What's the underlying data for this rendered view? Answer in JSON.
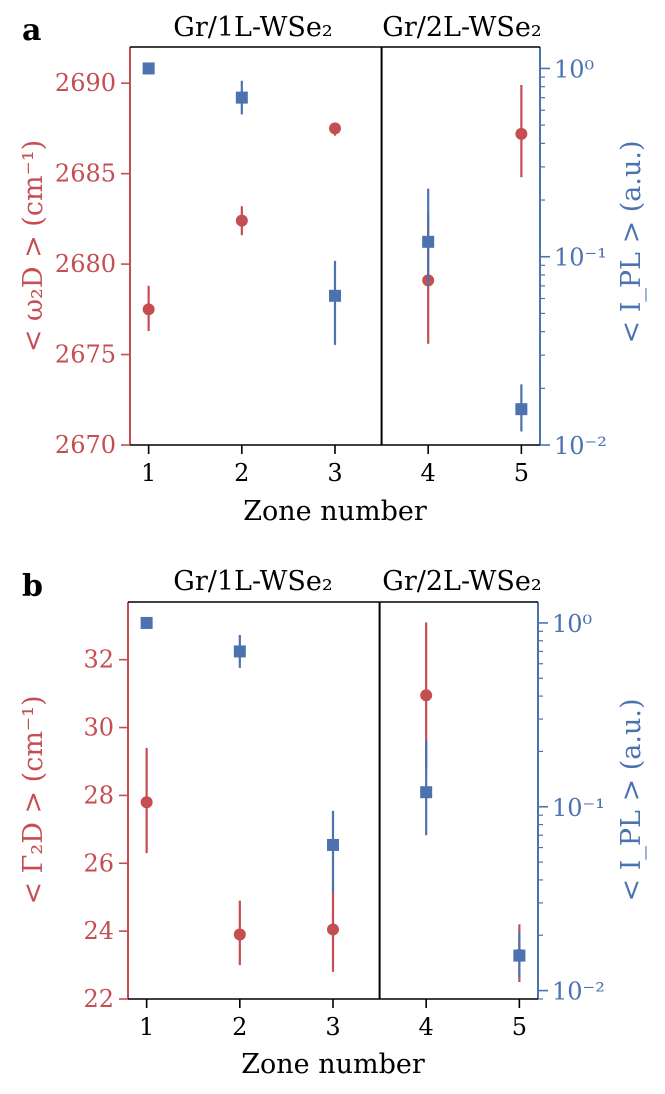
{
  "colors": {
    "red": "#c44e52",
    "blue": "#4c72b0",
    "axis": "#000000"
  },
  "chart_data": [
    {
      "panel_label": "a",
      "type": "scatter",
      "title_left": "Gr/1L-WSe₂",
      "title_right": "Gr/2L-WSe₂",
      "xlabel": "Zone number",
      "ylabel_left": "< ω₂D > (cm⁻¹)",
      "ylabel_right": "< I_PL > (a.u.)",
      "x_ticks": [
        1,
        2,
        3,
        4,
        5
      ],
      "x_tick_labels": [
        "1",
        "2",
        "3",
        "4",
        "5"
      ],
      "xlim": [
        0.8,
        5.2
      ],
      "divider_x": 3.5,
      "left_axis": {
        "ylim": [
          2670,
          2692
        ],
        "ticks": [
          2670,
          2675,
          2680,
          2685,
          2690
        ],
        "tick_labels": [
          "2670",
          "2675",
          "2680",
          "2685",
          "2690"
        ]
      },
      "right_axis": {
        "scale": "log",
        "ylim": [
          0.01,
          1.3
        ],
        "major_ticks": [
          0.01,
          0.1,
          1
        ],
        "tick_labels": [
          "10⁻²",
          "10⁻¹",
          "10⁰"
        ]
      },
      "series": [
        {
          "name": "omega_2D",
          "axis": "left",
          "marker": "circle",
          "x": [
            1,
            2,
            3,
            4,
            5
          ],
          "y": [
            2677.5,
            2682.4,
            2687.5,
            2679.1,
            2687.2
          ],
          "yerr_low": [
            2676.3,
            2681.6,
            2687.1,
            2675.6,
            2684.8
          ],
          "yerr_high": [
            2678.8,
            2683.2,
            2687.8,
            2682.8,
            2689.9
          ]
        },
        {
          "name": "I_PL",
          "axis": "right",
          "marker": "square",
          "x": [
            1,
            2,
            3,
            4,
            5
          ],
          "y": [
            1.0,
            0.7,
            0.062,
            0.12,
            0.0155
          ],
          "yerr_low": [
            0.93,
            0.57,
            0.034,
            0.07,
            0.0118
          ],
          "yerr_high": [
            1.07,
            0.86,
            0.095,
            0.23,
            0.021
          ]
        }
      ]
    },
    {
      "panel_label": "b",
      "type": "scatter",
      "title_left": "Gr/1L-WSe₂",
      "title_right": "Gr/2L-WSe₂",
      "xlabel": "Zone number",
      "ylabel_left": "< Γ₂D > (cm⁻¹)",
      "ylabel_right": "< I_PL > (a.u.)",
      "x_ticks": [
        1,
        2,
        3,
        4,
        5
      ],
      "x_tick_labels": [
        "1",
        "2",
        "3",
        "4",
        "5"
      ],
      "xlim": [
        0.8,
        5.2
      ],
      "divider_x": 3.5,
      "left_axis": {
        "ylim": [
          22,
          33.7
        ],
        "ticks": [
          22,
          24,
          26,
          28,
          30,
          32
        ],
        "tick_labels": [
          "22",
          "24",
          "26",
          "28",
          "30",
          "32"
        ]
      },
      "right_axis": {
        "scale": "log",
        "ylim": [
          0.009,
          1.3
        ],
        "major_ticks": [
          0.01,
          0.1,
          1
        ],
        "tick_labels": [
          "10⁻²",
          "10⁻¹",
          "10⁰"
        ]
      },
      "series": [
        {
          "name": "Gamma_2D",
          "axis": "left",
          "marker": "circle",
          "x": [
            1,
            2,
            3,
            4,
            5
          ],
          "y": [
            27.8,
            23.9,
            24.05,
            30.95,
            23.3
          ],
          "yerr_low": [
            26.3,
            23.0,
            22.8,
            28.8,
            22.5
          ],
          "yerr_high": [
            29.4,
            24.9,
            25.3,
            33.1,
            24.2
          ]
        },
        {
          "name": "I_PL",
          "axis": "right",
          "marker": "square",
          "x": [
            1,
            2,
            3,
            4,
            5
          ],
          "y": [
            1.0,
            0.7,
            0.062,
            0.12,
            0.0155
          ],
          "yerr_low": [
            0.93,
            0.57,
            0.034,
            0.07,
            0.0118
          ],
          "yerr_high": [
            1.07,
            0.86,
            0.095,
            0.23,
            0.021
          ]
        }
      ]
    }
  ]
}
